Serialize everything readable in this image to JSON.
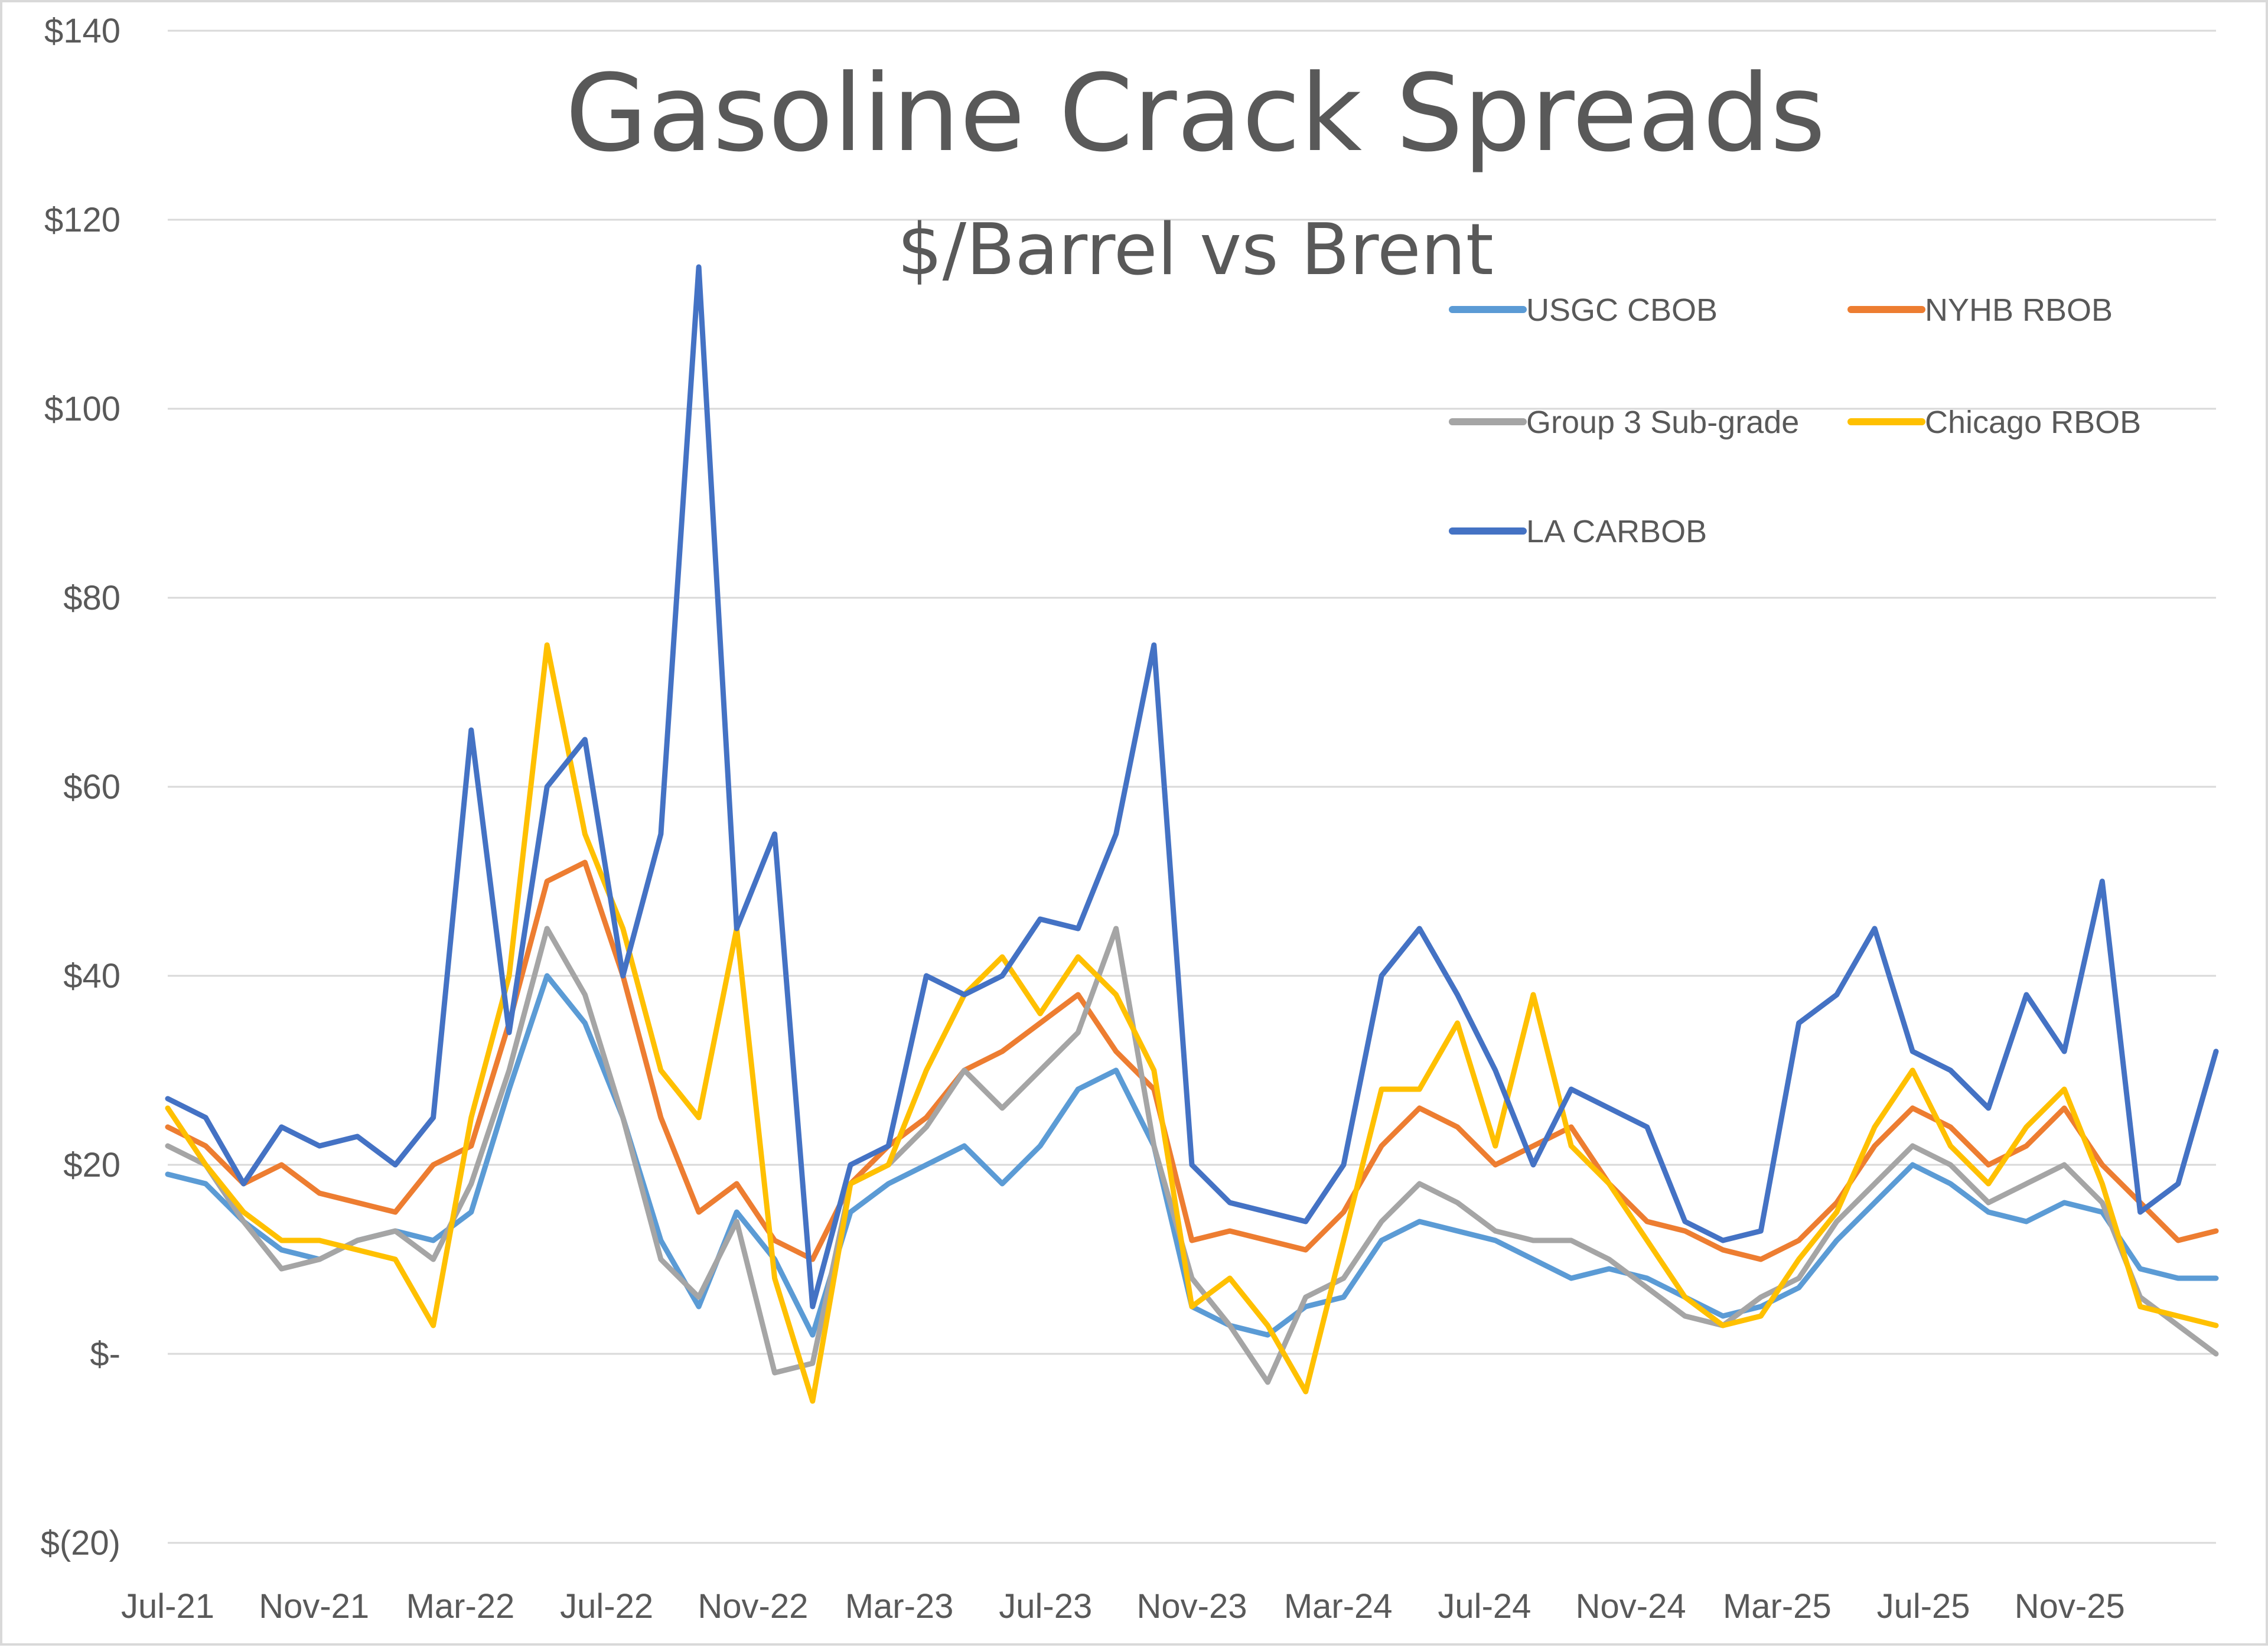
{
  "chart_data": {
    "type": "line",
    "title": "Gasoline Crack Spreads",
    "subtitle": "$/Barrel vs Brent",
    "xlabel": "",
    "ylabel": "",
    "ylim": [
      -20,
      140
    ],
    "yticks": [
      -20,
      0,
      20,
      40,
      60,
      80,
      100,
      120,
      140
    ],
    "ytick_labels": [
      "$(20)",
      "$-",
      "$20",
      "$40",
      "$60",
      "$80",
      "$100",
      "$120",
      "$140"
    ],
    "xlim": [
      "2021-07",
      "2026-01"
    ],
    "xtick_labels": [
      "Jul-21",
      "Nov-21",
      "Mar-22",
      "Jul-22",
      "Nov-22",
      "Mar-23",
      "Jul-23",
      "Nov-23",
      "Mar-24",
      "Jul-24",
      "Nov-24",
      "Mar-25",
      "Jul-25",
      "Nov-25"
    ],
    "grid": "horizontal",
    "legend_position": "top-right",
    "series": [
      {
        "name": "USGC CBOB",
        "color": "#5b9bd5",
        "x": [
          "2021-07",
          "2021-08",
          "2021-09",
          "2021-10",
          "2021-11",
          "2021-12",
          "2022-01",
          "2022-02",
          "2022-03",
          "2022-04",
          "2022-05",
          "2022-06",
          "2022-07",
          "2022-08",
          "2022-09",
          "2022-10",
          "2022-11",
          "2022-12",
          "2023-01",
          "2023-02",
          "2023-03",
          "2023-04",
          "2023-05",
          "2023-06",
          "2023-07",
          "2023-08",
          "2023-09",
          "2023-10",
          "2023-11",
          "2023-12",
          "2024-01",
          "2024-02",
          "2024-03",
          "2024-04",
          "2024-05",
          "2024-06",
          "2024-07",
          "2024-08",
          "2024-09",
          "2024-10",
          "2024-11",
          "2024-12",
          "2025-01",
          "2025-02",
          "2025-03",
          "2025-04",
          "2025-05",
          "2025-06",
          "2025-07",
          "2025-08",
          "2025-09",
          "2025-10",
          "2025-11",
          "2025-12",
          "2026-01"
        ],
        "y": [
          19,
          18,
          14,
          11,
          10,
          12,
          13,
          12,
          15,
          28,
          40,
          35,
          25,
          12,
          5,
          15,
          10,
          2,
          15,
          18,
          20,
          22,
          18,
          22,
          28,
          30,
          22,
          5,
          3,
          2,
          5,
          6,
          12,
          14,
          13,
          12,
          10,
          8,
          9,
          8,
          6,
          4,
          5,
          7,
          12,
          16,
          20,
          18,
          15,
          14,
          16,
          15,
          9,
          8,
          8
        ]
      },
      {
        "name": "NYHB RBOB",
        "color": "#ed7d31",
        "x": [
          "2021-07",
          "2021-08",
          "2021-09",
          "2021-10",
          "2021-11",
          "2021-12",
          "2022-01",
          "2022-02",
          "2022-03",
          "2022-04",
          "2022-05",
          "2022-06",
          "2022-07",
          "2022-08",
          "2022-09",
          "2022-10",
          "2022-11",
          "2022-12",
          "2023-01",
          "2023-02",
          "2023-03",
          "2023-04",
          "2023-05",
          "2023-06",
          "2023-07",
          "2023-08",
          "2023-09",
          "2023-10",
          "2023-11",
          "2023-12",
          "2024-01",
          "2024-02",
          "2024-03",
          "2024-04",
          "2024-05",
          "2024-06",
          "2024-07",
          "2024-08",
          "2024-09",
          "2024-10",
          "2024-11",
          "2024-12",
          "2025-01",
          "2025-02",
          "2025-03",
          "2025-04",
          "2025-05",
          "2025-06",
          "2025-07",
          "2025-08",
          "2025-09",
          "2025-10",
          "2025-11",
          "2025-12",
          "2026-01"
        ],
        "y": [
          24,
          22,
          18,
          20,
          17,
          16,
          15,
          20,
          22,
          35,
          50,
          52,
          40,
          25,
          15,
          18,
          12,
          10,
          18,
          22,
          25,
          30,
          32,
          35,
          38,
          32,
          28,
          12,
          13,
          12,
          11,
          15,
          22,
          26,
          24,
          20,
          22,
          24,
          18,
          14,
          13,
          11,
          10,
          12,
          16,
          22,
          26,
          24,
          20,
          22,
          26,
          20,
          16,
          12,
          13
        ]
      },
      {
        "name": "Group 3 Sub-grade",
        "color": "#a5a5a5",
        "x": [
          "2021-07",
          "2021-08",
          "2021-09",
          "2021-10",
          "2021-11",
          "2021-12",
          "2022-01",
          "2022-02",
          "2022-03",
          "2022-04",
          "2022-05",
          "2022-06",
          "2022-07",
          "2022-08",
          "2022-09",
          "2022-10",
          "2022-11",
          "2022-12",
          "2023-01",
          "2023-02",
          "2023-03",
          "2023-04",
          "2023-05",
          "2023-06",
          "2023-07",
          "2023-08",
          "2023-09",
          "2023-10",
          "2023-11",
          "2023-12",
          "2024-01",
          "2024-02",
          "2024-03",
          "2024-04",
          "2024-05",
          "2024-06",
          "2024-07",
          "2024-08",
          "2024-09",
          "2024-10",
          "2024-11",
          "2024-12",
          "2025-01",
          "2025-02",
          "2025-03",
          "2025-04",
          "2025-05",
          "2025-06",
          "2025-07",
          "2025-08",
          "2025-09",
          "2025-10",
          "2025-11",
          "2025-12",
          "2026-01"
        ],
        "y": [
          22,
          20,
          14,
          9,
          10,
          12,
          13,
          10,
          18,
          30,
          45,
          38,
          25,
          10,
          6,
          14,
          -2,
          -1,
          18,
          20,
          24,
          30,
          26,
          30,
          34,
          45,
          22,
          8,
          3,
          -3,
          6,
          8,
          14,
          18,
          16,
          13,
          12,
          12,
          10,
          7,
          4,
          3,
          6,
          8,
          14,
          18,
          22,
          20,
          16,
          18,
          20,
          16,
          6,
          3,
          0
        ]
      },
      {
        "name": "Chicago RBOB",
        "color": "#ffc000",
        "x": [
          "2021-07",
          "2021-08",
          "2021-09",
          "2021-10",
          "2021-11",
          "2021-12",
          "2022-01",
          "2022-02",
          "2022-03",
          "2022-04",
          "2022-05",
          "2022-06",
          "2022-07",
          "2022-08",
          "2022-09",
          "2022-10",
          "2022-11",
          "2022-12",
          "2023-01",
          "2023-02",
          "2023-03",
          "2023-04",
          "2023-05",
          "2023-06",
          "2023-07",
          "2023-08",
          "2023-09",
          "2023-10",
          "2023-11",
          "2023-12",
          "2024-01",
          "2024-02",
          "2024-03",
          "2024-04",
          "2024-05",
          "2024-06",
          "2024-07",
          "2024-08",
          "2024-09",
          "2024-10",
          "2024-11",
          "2024-12",
          "2025-01",
          "2025-02",
          "2025-03",
          "2025-04",
          "2025-05",
          "2025-06",
          "2025-07",
          "2025-08",
          "2025-09",
          "2025-10",
          "2025-11",
          "2025-12",
          "2026-01"
        ],
        "y": [
          26,
          20,
          15,
          12,
          12,
          11,
          10,
          3,
          25,
          40,
          75,
          55,
          45,
          30,
          25,
          45,
          8,
          -5,
          18,
          20,
          30,
          38,
          42,
          36,
          42,
          38,
          30,
          5,
          8,
          3,
          -4,
          12,
          28,
          28,
          35,
          22,
          38,
          22,
          18,
          12,
          6,
          3,
          4,
          10,
          15,
          24,
          30,
          22,
          18,
          24,
          28,
          18,
          5,
          4,
          3
        ]
      },
      {
        "name": "LA CARBOB",
        "color": "#4472c4",
        "x": [
          "2021-07",
          "2021-08",
          "2021-09",
          "2021-10",
          "2021-11",
          "2021-12",
          "2022-01",
          "2022-02",
          "2022-03",
          "2022-04",
          "2022-05",
          "2022-06",
          "2022-07",
          "2022-08",
          "2022-09",
          "2022-10",
          "2022-11",
          "2022-12",
          "2023-01",
          "2023-02",
          "2023-03",
          "2023-04",
          "2023-05",
          "2023-06",
          "2023-07",
          "2023-08",
          "2023-09",
          "2023-10",
          "2023-11",
          "2023-12",
          "2024-01",
          "2024-02",
          "2024-03",
          "2024-04",
          "2024-05",
          "2024-06",
          "2024-07",
          "2024-08",
          "2024-09",
          "2024-10",
          "2024-11",
          "2024-12",
          "2025-01",
          "2025-02",
          "2025-03",
          "2025-04",
          "2025-05",
          "2025-06",
          "2025-07",
          "2025-08",
          "2025-09",
          "2025-10",
          "2025-11",
          "2025-12",
          "2026-01"
        ],
        "y": [
          27,
          25,
          18,
          24,
          22,
          23,
          20,
          25,
          66,
          34,
          60,
          65,
          40,
          55,
          115,
          45,
          55,
          5,
          20,
          22,
          40,
          38,
          40,
          46,
          45,
          55,
          75,
          20,
          16,
          15,
          14,
          20,
          40,
          45,
          38,
          30,
          20,
          28,
          26,
          24,
          14,
          12,
          13,
          35,
          38,
          45,
          32,
          30,
          26,
          38,
          32,
          50,
          15,
          18,
          32
        ]
      }
    ]
  }
}
